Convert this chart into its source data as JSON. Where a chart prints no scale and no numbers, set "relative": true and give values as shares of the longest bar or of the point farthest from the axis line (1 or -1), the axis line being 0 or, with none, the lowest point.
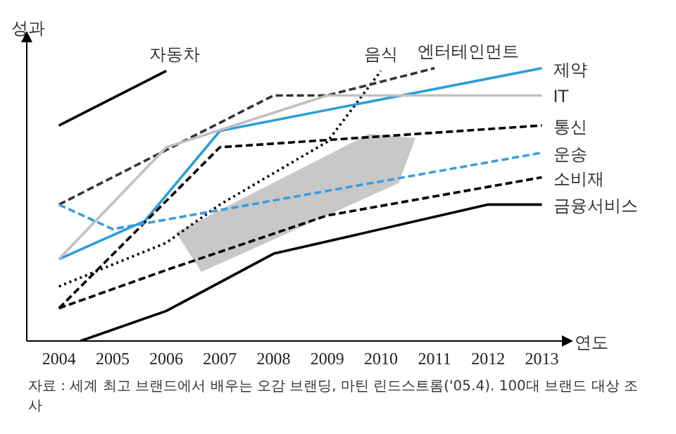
{
  "chart_data": {
    "type": "line",
    "relative": true,
    "ylabel": "성과",
    "xlabel": "연도",
    "xlim": [
      2003.4,
      2013.4
    ],
    "xticks": [
      2004,
      2005,
      2006,
      2007,
      2008,
      2009,
      2010,
      2011,
      2012,
      2013
    ],
    "marker": "none",
    "series": [
      {
        "name": "자동차",
        "color": "#000000",
        "line_style": "solid",
        "x": [
          2004,
          2006
        ],
        "values": [
          0.79,
          0.99
        ]
      },
      {
        "name": "음식",
        "color": "#000000",
        "line_style": "dotted",
        "x": [
          2004,
          2006,
          2007,
          2009,
          2010
        ],
        "values": [
          0.2,
          0.36,
          0.5,
          0.73,
          0.99
        ]
      },
      {
        "name": "엔터테인먼트",
        "color": "#333333",
        "line_style": "dashed",
        "x": [
          2004,
          2006,
          2008,
          2009,
          2011
        ],
        "values": [
          0.5,
          0.7,
          0.9,
          0.9,
          1.0
        ]
      },
      {
        "name": "제약",
        "color": "#2a9fd6",
        "line_style": "solid",
        "x": [
          2004,
          2005.6,
          2007,
          2013
        ],
        "values": [
          0.3,
          0.44,
          0.77,
          1.0
        ]
      },
      {
        "name": "IT",
        "color": "#c0c0c0",
        "line_style": "solid",
        "x": [
          2004,
          2006,
          2009,
          2013
        ],
        "values": [
          0.3,
          0.71,
          0.9,
          0.9
        ]
      },
      {
        "name": "통신",
        "color": "#000000",
        "line_style": "dashed",
        "x": [
          2004,
          2007,
          2013
        ],
        "values": [
          0.12,
          0.71,
          0.79
        ]
      },
      {
        "name": "운송",
        "color": "#3a9ee0",
        "line_style": "dashed",
        "x": [
          2004,
          2005,
          2013
        ],
        "values": [
          0.5,
          0.41,
          0.69
        ]
      },
      {
        "name": "소비재",
        "color": "#000000",
        "line_style": "dashed",
        "x": [
          2004,
          2006,
          2009,
          2013
        ],
        "values": [
          0.12,
          0.26,
          0.46,
          0.6
        ]
      },
      {
        "name": "금융서비스",
        "color": "#000000",
        "line_style": "solid",
        "x": [
          2004.4,
          2006,
          2008,
          2012,
          2013
        ],
        "values": [
          0,
          0.11,
          0.32,
          0.5,
          0.5
        ]
      }
    ],
    "annotations": [
      "자료 : 세계 최고 브랜드에서 배우는 오감 브랜딩, 마틴 린드스트롬('05.4). 100대 브랜드 대상 조사"
    ]
  }
}
